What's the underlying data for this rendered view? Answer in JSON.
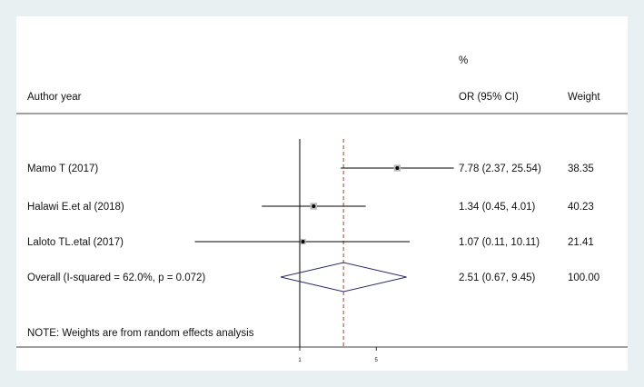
{
  "chart_data": {
    "type": "forest",
    "header": {
      "study_col": "Author year",
      "effect_col": "OR (95% CI)",
      "weight_col_line1": "%",
      "weight_col_line2": "Weight"
    },
    "studies": [
      {
        "label": "Mamo T (2017)",
        "or": 7.78,
        "ci_low": 2.37,
        "ci_high": 25.54,
        "ci_text": "7.78 (2.37, 25.54)",
        "weight": "38.35",
        "w": 38.35
      },
      {
        "label": "Halawi E.et al (2018)",
        "or": 1.34,
        "ci_low": 0.45,
        "ci_high": 4.01,
        "ci_text": "1.34 (0.45, 4.01)",
        "weight": "40.23",
        "w": 40.23
      },
      {
        "label": "Laloto TL.etal (2017)",
        "or": 1.07,
        "ci_low": 0.11,
        "ci_high": 10.11,
        "ci_text": "1.07 (0.11, 10.11)",
        "weight": "21.41",
        "w": 21.41
      }
    ],
    "overall": {
      "label": "Overall  (I-squared = 62.0%, p = 0.072)",
      "or": 2.51,
      "ci_low": 0.67,
      "ci_high": 9.45,
      "ci_text": "2.51 (0.67, 9.45)",
      "weight": "100.00"
    },
    "note": "NOTE: Weights are from random effects analysis",
    "x_scale": "log",
    "null_line": 1,
    "x_ticks": [
      1,
      5
    ],
    "x_tick_labels": [
      "1",
      "5"
    ],
    "colors": {
      "line": "#000000",
      "diamond": "#2b2b6b",
      "overall_line": "#c0392b",
      "marker_box": "#bbbbbb"
    }
  }
}
